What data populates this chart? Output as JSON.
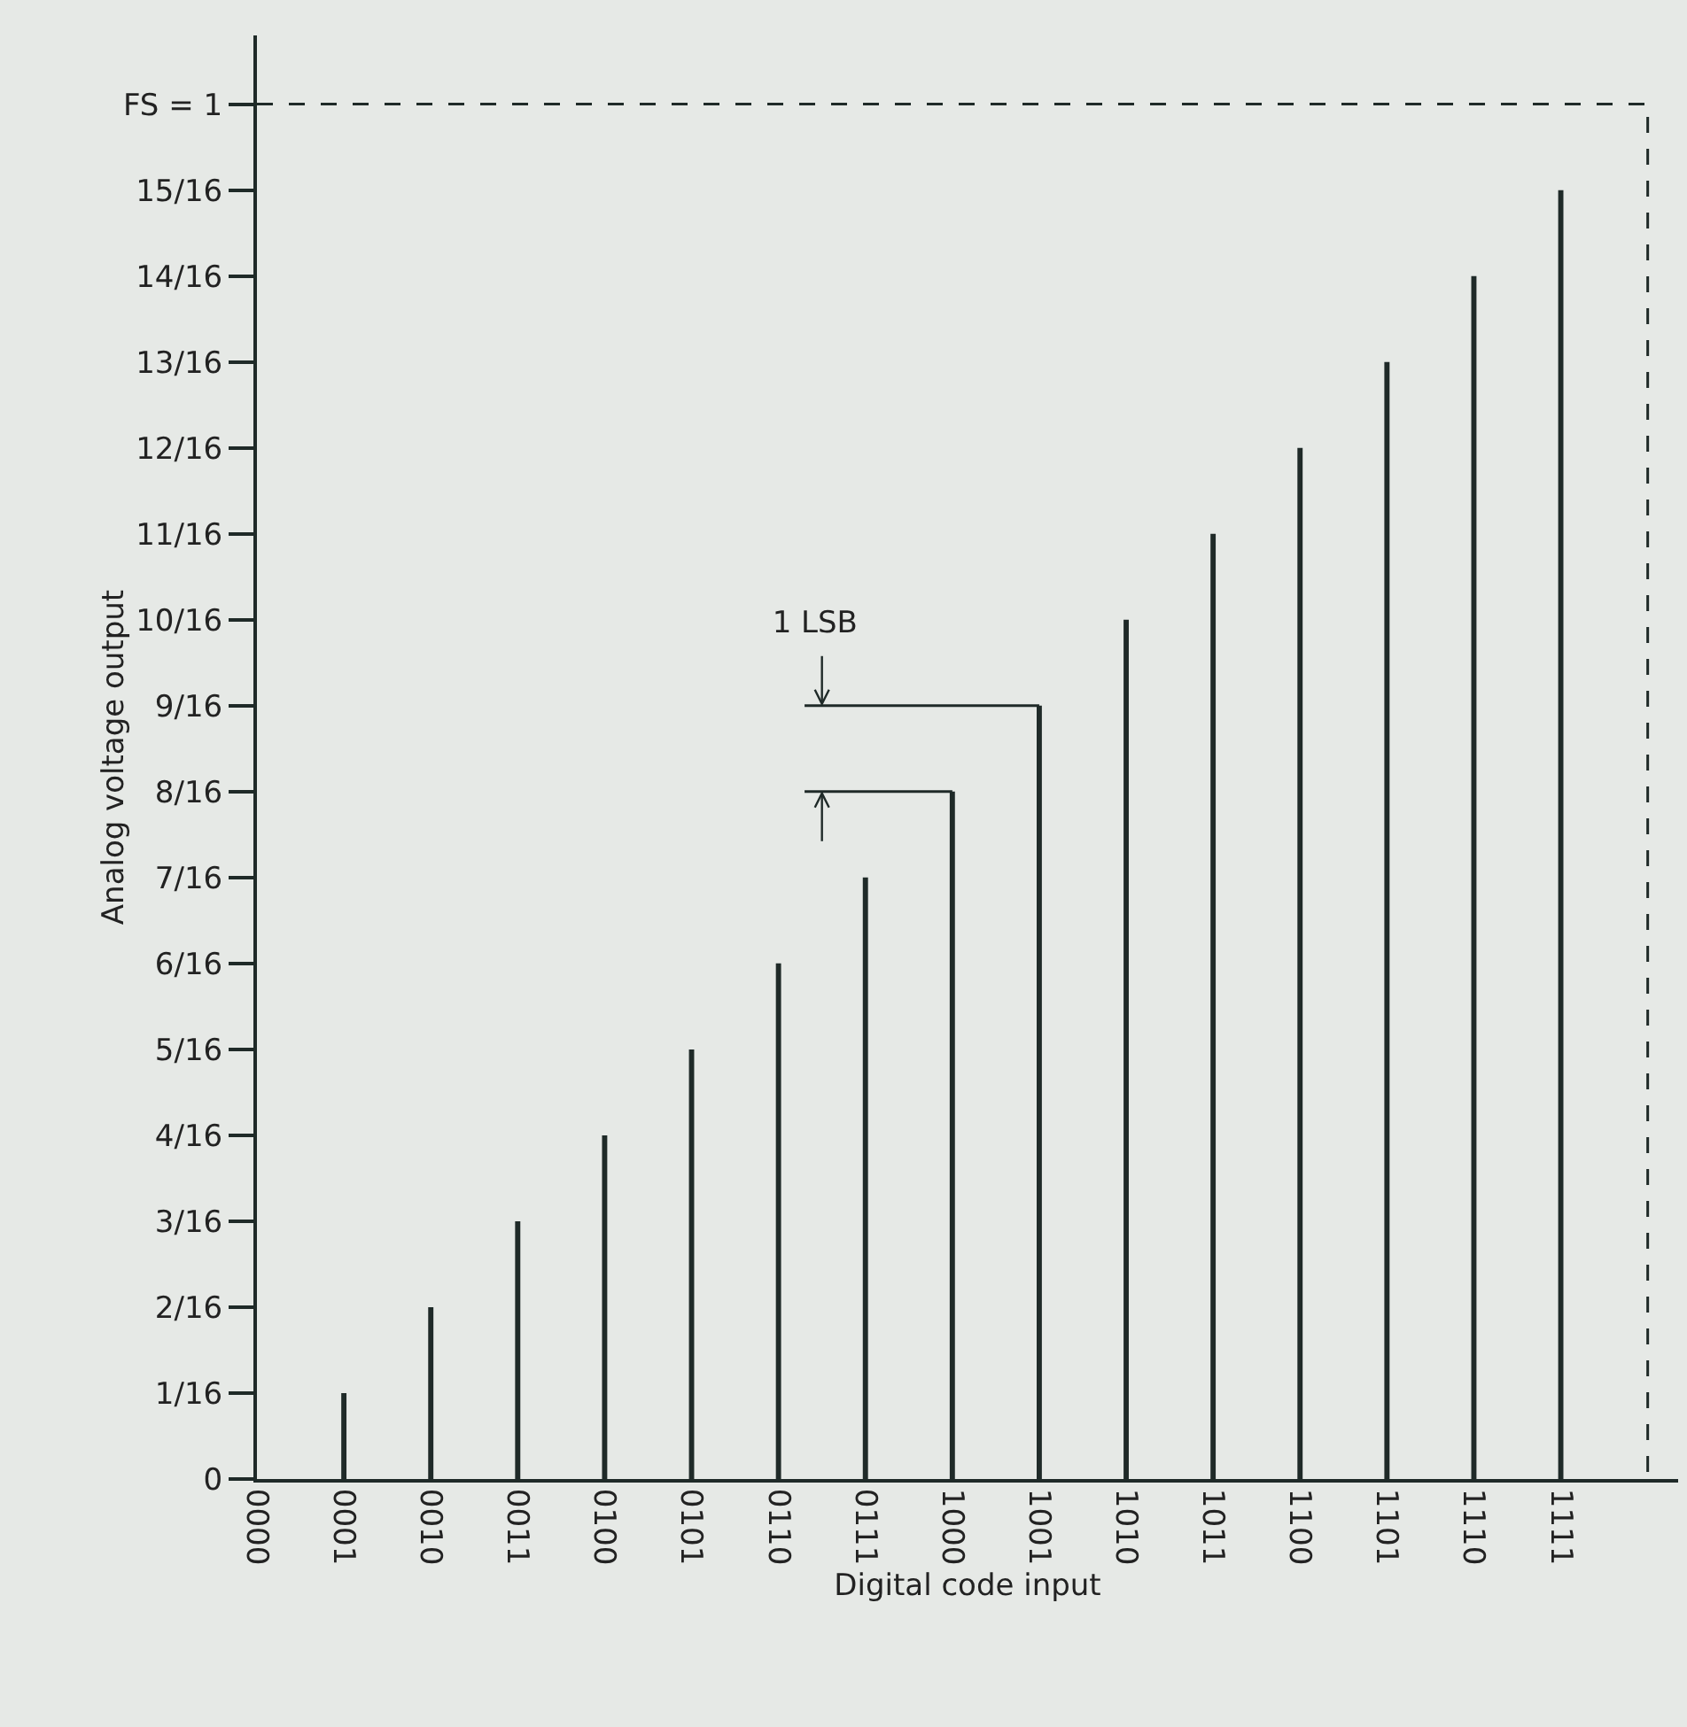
{
  "chart_data": {
    "type": "bar",
    "xlabel": "Digital code input",
    "ylabel": "Analog voltage output",
    "categories": [
      "0000",
      "0001",
      "0010",
      "0011",
      "0100",
      "0101",
      "0110",
      "0111",
      "1000",
      "1001",
      "1010",
      "1011",
      "1100",
      "1101",
      "1110",
      "1111"
    ],
    "values": [
      0,
      0.0625,
      0.125,
      0.1875,
      0.25,
      0.3125,
      0.375,
      0.4375,
      0.5,
      0.5625,
      0.625,
      0.6875,
      0.75,
      0.8125,
      0.875,
      0.9375
    ],
    "color": "#1f2a28",
    "ylim": [
      0,
      1.05
    ],
    "yticks": [
      0,
      {
        "value": 0.0625,
        "label": "1/16"
      },
      {
        "value": 0.125,
        "label": "2/16"
      },
      {
        "value": 0.1875,
        "label": "3/16"
      },
      {
        "value": 0.25,
        "label": "4/16"
      },
      {
        "value": 0.3125,
        "label": "5/16"
      },
      {
        "value": 0.375,
        "label": "6/16"
      },
      {
        "value": 0.4375,
        "label": "7/16"
      },
      {
        "value": 0.5,
        "label": "8/16"
      },
      {
        "value": 0.5625,
        "label": "9/16"
      },
      {
        "value": 0.625,
        "label": "10/16"
      },
      {
        "value": 0.6875,
        "label": "11/16"
      },
      {
        "value": 0.75,
        "label": "12/16"
      },
      {
        "value": 0.8125,
        "label": "13/16"
      },
      {
        "value": 0.875,
        "label": "14/16"
      },
      {
        "value": 0.9375,
        "label": "15/16"
      },
      {
        "value": 1,
        "label": "FS = 1"
      }
    ],
    "ref_lines": [
      {
        "axis": "y",
        "value": 1,
        "line_style": "dashed"
      }
    ],
    "annotations": [
      "1 LSB"
    ]
  }
}
